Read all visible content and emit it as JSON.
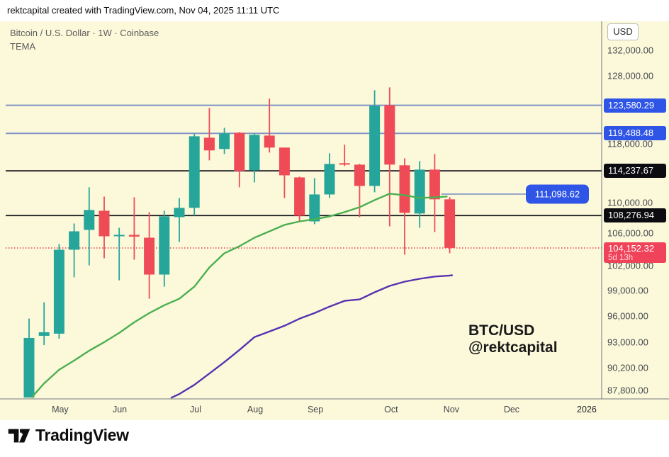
{
  "header": {
    "attribution": "rektcapital created with TradingView.com, Nov 04, 2025 11:11 UTC"
  },
  "chart": {
    "symbol_line": "Bitcoin / U.S. Dollar · 1W · Coinbase",
    "indicator_label": "TEMA",
    "watermark_line1": "BTC/USD",
    "watermark_line2": "@rektcapital",
    "axis_currency": "USD"
  },
  "footer": {
    "brand": "TradingView"
  },
  "chart_data": {
    "type": "candlestick",
    "symbol": "BTC/USD",
    "timeframe": "1W",
    "exchange": "Coinbase",
    "colors": {
      "background": "#fcf9db",
      "up_candle": "#26a69a",
      "down_candle": "#ef4b56",
      "tema_fast": "#4caf50",
      "tema_slow": "#5732b0",
      "blue_level_line": "#7e93c6",
      "black_level_line": "#16161d",
      "current_price_line": "#e33e4f",
      "blue_badge": "#2f55e6"
    },
    "y_ticks": [
      132000,
      128000,
      118000,
      110000,
      106000,
      102000,
      99000,
      96000,
      93000,
      90200,
      87800
    ],
    "x_labels": [
      {
        "label": "May",
        "index": 2.07
      },
      {
        "label": "Jun",
        "index": 6.04
      },
      {
        "label": "Jul",
        "index": 11.08
      },
      {
        "label": "Aug",
        "index": 15.05
      },
      {
        "label": "Sep",
        "index": 19.06
      },
      {
        "label": "Oct",
        "index": 24.1
      },
      {
        "label": "Nov",
        "index": 28.11
      },
      {
        "label": "Dec",
        "index": 32.12,
        "year": false
      },
      {
        "label": "2026",
        "index": 37.12,
        "year": true
      }
    ],
    "levels": [
      {
        "price": 123580.29,
        "label": "123,580.29",
        "style": "blue"
      },
      {
        "price": 119488.48,
        "label": "119,488.48",
        "style": "blue"
      },
      {
        "price": 114237.67,
        "label": "114,237.67",
        "style": "black"
      },
      {
        "price": 108276.94,
        "label": "108,276.94",
        "style": "black"
      }
    ],
    "current_price": {
      "price": 104152.32,
      "label": "104,152.32",
      "countdown": "5d 13h"
    },
    "callout": {
      "price": 111098.62,
      "label": "111,098.62"
    },
    "candles": [
      [
        87050,
        95700,
        87050,
        93500
      ],
      [
        93740,
        97590,
        92700,
        94140
      ],
      [
        93980,
        104640,
        93420,
        103930
      ],
      [
        103930,
        107250,
        100540,
        106250
      ],
      [
        106430,
        112000,
        102000,
        109000
      ],
      [
        108900,
        110770,
        102870,
        105620
      ],
      [
        105620,
        106700,
        100190,
        105800
      ],
      [
        105800,
        110680,
        102700,
        105580
      ],
      [
        105440,
        108720,
        98000,
        100880
      ],
      [
        100880,
        108910,
        99430,
        108170
      ],
      [
        108070,
        110580,
        104900,
        109280
      ],
      [
        109280,
        119480,
        108260,
        119070
      ],
      [
        118870,
        123190,
        115680,
        117070
      ],
      [
        117270,
        120290,
        116570,
        119480
      ],
      [
        119580,
        119680,
        112000,
        114210
      ],
      [
        114310,
        119480,
        112670,
        119280
      ],
      [
        119170,
        124560,
        116770,
        117470
      ],
      [
        117470,
        117470,
        110580,
        113630
      ],
      [
        113340,
        113440,
        107520,
        108260
      ],
      [
        107520,
        113250,
        107160,
        111050
      ],
      [
        111050,
        116670,
        110580,
        115190
      ],
      [
        115290,
        117870,
        114900,
        115090
      ],
      [
        115090,
        115190,
        108070,
        112190
      ],
      [
        112190,
        125830,
        111340,
        123500
      ],
      [
        123600,
        126260,
        106880,
        115100
      ],
      [
        115000,
        115980,
        103310,
        108630
      ],
      [
        108540,
        115580,
        106700,
        114410
      ],
      [
        114410,
        116570,
        106160,
        110400
      ],
      [
        110400,
        110700,
        103490,
        104152.32
      ]
    ],
    "tema_fast_points": [
      [
        0.2,
        87100
      ],
      [
        1,
        88540
      ],
      [
        2,
        90000
      ],
      [
        3,
        91000
      ],
      [
        4,
        92080
      ],
      [
        5,
        93030
      ],
      [
        6,
        94060
      ],
      [
        7,
        95270
      ],
      [
        8,
        96330
      ],
      [
        9,
        97240
      ],
      [
        10,
        98000
      ],
      [
        11,
        99430
      ],
      [
        12,
        101740
      ],
      [
        13,
        103490
      ],
      [
        14,
        104370
      ],
      [
        15,
        105440
      ],
      [
        16,
        106250
      ],
      [
        17,
        107070
      ],
      [
        18,
        107520
      ],
      [
        19,
        107800
      ],
      [
        20,
        108170
      ],
      [
        21,
        108720
      ],
      [
        22,
        109370
      ],
      [
        23,
        110300
      ],
      [
        24,
        111150
      ],
      [
        25,
        110960
      ],
      [
        26,
        110580
      ],
      [
        27,
        110680
      ],
      [
        27.8,
        110770
      ]
    ],
    "tema_slow_points": [
      [
        9.48,
        87040
      ],
      [
        10,
        87420
      ],
      [
        11,
        88380
      ],
      [
        12,
        89590
      ],
      [
        13,
        90830
      ],
      [
        14,
        92160
      ],
      [
        15,
        93590
      ],
      [
        16,
        94220
      ],
      [
        17,
        94870
      ],
      [
        18,
        95680
      ],
      [
        19,
        96330
      ],
      [
        20,
        97080
      ],
      [
        21,
        97750
      ],
      [
        22,
        97920
      ],
      [
        23,
        98760
      ],
      [
        24,
        99520
      ],
      [
        25,
        100030
      ],
      [
        26,
        100370
      ],
      [
        27,
        100640
      ],
      [
        28,
        100760
      ],
      [
        28.15,
        100800
      ]
    ]
  }
}
